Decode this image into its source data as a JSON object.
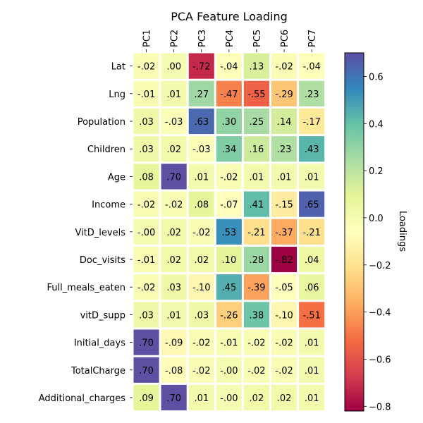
{
  "chart_data": {
    "type": "heatmap",
    "title": "PCA Feature Loading",
    "columns": [
      "PC1",
      "PC2",
      "PC3",
      "PC4",
      "PC5",
      "PC6",
      "PC7"
    ],
    "rows": [
      "Lat",
      "Lng",
      "Population",
      "Children",
      "Age",
      "Income",
      "VitD_levels",
      "Doc_visits",
      "Full_meals_eaten",
      "vitD_supp",
      "Initial_days",
      "TotalCharge",
      "Additional_charges"
    ],
    "values": [
      [
        -0.02,
        0.0,
        -0.72,
        -0.04,
        0.13,
        -0.02,
        -0.04
      ],
      [
        -0.01,
        0.01,
        0.27,
        -0.47,
        -0.55,
        -0.29,
        0.23
      ],
      [
        0.03,
        -0.03,
        0.63,
        0.3,
        0.25,
        0.14,
        -0.17
      ],
      [
        0.03,
        0.02,
        -0.03,
        0.34,
        0.16,
        0.23,
        0.43
      ],
      [
        0.08,
        0.7,
        0.01,
        -0.02,
        0.01,
        0.01,
        0.01
      ],
      [
        -0.02,
        -0.02,
        0.08,
        -0.07,
        0.41,
        -0.15,
        0.65
      ],
      [
        -0.0,
        0.02,
        -0.02,
        0.53,
        -0.21,
        -0.37,
        -0.21
      ],
      [
        -0.01,
        0.02,
        0.02,
        0.1,
        0.28,
        -0.82,
        0.04
      ],
      [
        -0.02,
        0.03,
        -0.1,
        0.45,
        -0.39,
        -0.05,
        0.06
      ],
      [
        0.03,
        0.01,
        0.03,
        -0.26,
        0.38,
        -0.1,
        -0.51
      ],
      [
        0.7,
        -0.09,
        -0.02,
        -0.01,
        -0.02,
        -0.02,
        0.01
      ],
      [
        0.7,
        -0.08,
        -0.02,
        -0.0,
        -0.02,
        -0.02,
        0.01
      ],
      [
        0.09,
        0.7,
        0.01,
        -0.0,
        0.02,
        0.02,
        0.01
      ]
    ],
    "labels": [
      [
        "-.02",
        ".00",
        "-.72",
        "-.04",
        ".13",
        "-.02",
        "-.04"
      ],
      [
        "-.01",
        ".01",
        ".27",
        "-.47",
        "-.55",
        "-.29",
        ".23"
      ],
      [
        ".03",
        "-.03",
        ".63",
        ".30",
        ".25",
        ".14",
        "-.17"
      ],
      [
        ".03",
        ".02",
        "-.03",
        ".34",
        ".16",
        ".23",
        ".43"
      ],
      [
        ".08",
        ".70",
        ".01",
        "-.02",
        ".01",
        ".01",
        ".01"
      ],
      [
        "-.02",
        "-.02",
        ".08",
        "-.07",
        ".41",
        "-.15",
        ".65"
      ],
      [
        "-.00",
        ".02",
        "-.02",
        ".53",
        "-.21",
        "-.37",
        "-.21"
      ],
      [
        "-.01",
        ".02",
        ".02",
        ".10",
        ".28",
        "-.82",
        ".04"
      ],
      [
        "-.02",
        ".03",
        "-.10",
        ".45",
        "-.39",
        "-.05",
        ".06"
      ],
      [
        ".03",
        ".01",
        ".03",
        "-.26",
        ".38",
        "-.10",
        "-.51"
      ],
      [
        ".70",
        "-.09",
        "-.02",
        "-.01",
        "-.02",
        "-.02",
        ".01"
      ],
      [
        ".70",
        "-.08",
        "-.02",
        "-.00",
        "-.02",
        "-.02",
        ".01"
      ],
      [
        ".09",
        ".70",
        ".01",
        "-.00",
        ".02",
        ".02",
        ".01"
      ]
    ],
    "colorbar": {
      "label": "Loadings",
      "range": [
        -0.82,
        0.7
      ],
      "colormap": "Spectral",
      "ticks": [
        0.6,
        0.4,
        0.2,
        0.0,
        -0.2,
        -0.4,
        -0.6,
        -0.8
      ],
      "tick_labels": [
        "0.6",
        "0.4",
        "0.2",
        "0.0",
        "−0.2",
        "−0.4",
        "−0.6",
        "−0.8"
      ]
    },
    "legend_position": "right",
    "grid": false
  }
}
